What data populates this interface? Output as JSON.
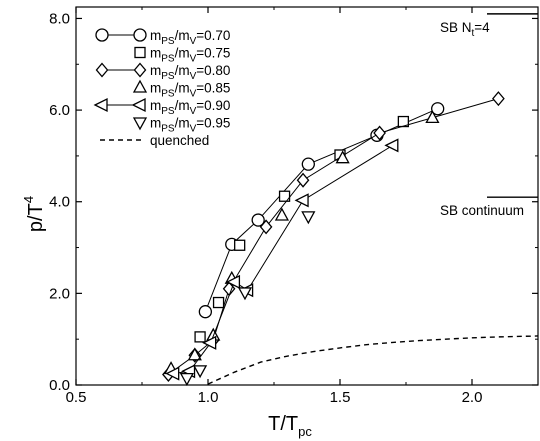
{
  "chart_data": {
    "type": "line",
    "xlabel": "T/T",
    "xlabel_sub": "pc",
    "ylabel": "p/T",
    "ylabel_sup": "4",
    "xlim": [
      0.5,
      2.25
    ],
    "ylim": [
      0.0,
      8.25
    ],
    "xticks": [
      0.5,
      1.0,
      1.5,
      2.0
    ],
    "xtick_labels": [
      "0.5",
      "1.0",
      "1.5",
      "2.0"
    ],
    "yticks": [
      0.0,
      2.0,
      4.0,
      6.0,
      8.0
    ],
    "ytick_labels": [
      "0.0",
      "2.0",
      "4.0",
      "6.0",
      "8.0"
    ],
    "grid": false,
    "legend_position": "top-left",
    "legend_label_prefix": "m",
    "legend_label_sub1": "PS",
    "legend_label_mid": "/m",
    "legend_label_sub2": "V",
    "series": [
      {
        "label_value": "=0.70",
        "marker": "circle",
        "connected": true,
        "x": [
          0.99,
          1.09,
          1.19,
          1.38,
          1.64,
          1.87
        ],
        "y": [
          1.6,
          3.07,
          3.6,
          4.82,
          5.45,
          6.03
        ]
      },
      {
        "label_value": "=0.75",
        "marker": "square",
        "connected": false,
        "x": [
          0.97,
          1.04,
          1.12,
          1.29,
          1.5,
          1.74
        ],
        "y": [
          1.05,
          1.8,
          3.05,
          4.12,
          5.02,
          5.75
        ]
      },
      {
        "label_value": "=0.80",
        "marker": "diamond",
        "connected": true,
        "x": [
          0.85,
          0.95,
          1.02,
          1.08,
          1.22,
          1.36,
          1.65,
          2.1
        ],
        "y": [
          0.23,
          0.65,
          0.98,
          2.1,
          3.45,
          4.47,
          5.5,
          6.25
        ]
      },
      {
        "label_value": "=0.85",
        "marker": "triangle-up",
        "connected": false,
        "x": [
          0.86,
          0.95,
          1.02,
          1.09,
          1.28,
          1.51,
          1.85
        ],
        "y": [
          0.35,
          0.65,
          1.08,
          2.32,
          3.7,
          4.95,
          5.83
        ]
      },
      {
        "label_value": "=0.90",
        "marker": "triangle-left",
        "connected": true,
        "x": [
          0.87,
          0.93,
          1.01,
          1.1,
          1.15,
          1.36,
          1.7
        ],
        "y": [
          0.25,
          0.3,
          0.92,
          2.25,
          2.07,
          4.03,
          5.23
        ]
      },
      {
        "label_value": "=0.95",
        "marker": "triangle-down",
        "connected": false,
        "x": [
          0.92,
          0.97,
          1.14,
          1.38
        ],
        "y": [
          0.15,
          0.32,
          2.02,
          3.68
        ]
      },
      {
        "name": "quenched",
        "marker": "none",
        "style": "dashed",
        "x": [
          1.0,
          1.1,
          1.2,
          1.3,
          1.4,
          1.5,
          1.6,
          1.7,
          1.8,
          1.9,
          2.0,
          2.1,
          2.25
        ],
        "y": [
          0.02,
          0.28,
          0.5,
          0.63,
          0.73,
          0.81,
          0.88,
          0.93,
          0.97,
          1.0,
          1.03,
          1.05,
          1.07
        ]
      }
    ],
    "annotations": [
      {
        "text_main": "SB N",
        "text_sub": "t",
        "text_tail": "=4",
        "level": 8.1
      },
      {
        "text": "SB continuum",
        "level": 4.1
      }
    ]
  }
}
